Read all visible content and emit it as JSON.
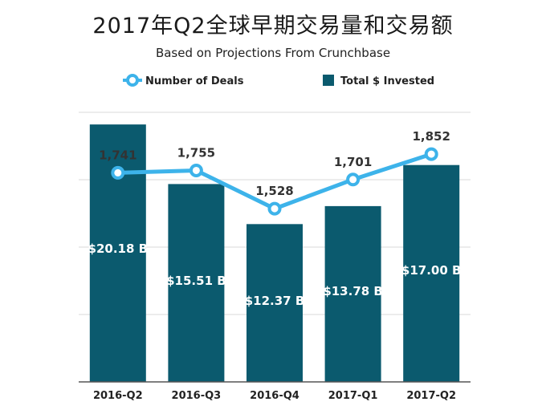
{
  "title": "2017年Q2全球早期交易量和交易额",
  "subtitle": "Based on Projections From Crunchbase",
  "legend": {
    "deals_label": "Number of Deals",
    "invested_label": "Total $ Invested"
  },
  "colors": {
    "bar": "#0b5a6e",
    "line": "#3db3ea",
    "grid": "#d9d9d9",
    "axis": "#555555"
  },
  "chart_data": {
    "type": "bar",
    "title": "2017年Q2全球早期交易量和交易额",
    "subtitle": "Based on Projections From Crunchbase",
    "categories": [
      "2016-Q2",
      "2016-Q3",
      "2016-Q4",
      "2017-Q1",
      "2017-Q2"
    ],
    "series": [
      {
        "name": "Total $ Invested",
        "type": "bar",
        "values": [
          20.18,
          15.51,
          12.37,
          13.78,
          17.0
        ],
        "labels": [
          "$20.18 B",
          "$15.51 B",
          "$12.37 B",
          "$13.78 B",
          "$17.00 B"
        ]
      },
      {
        "name": "Number of Deals",
        "type": "line",
        "values": [
          1741,
          1755,
          1528,
          1701,
          1852
        ],
        "labels": [
          "1,741",
          "1,755",
          "1,528",
          "1,701",
          "1,852"
        ]
      }
    ],
    "bar_ylim": [
      0,
      20
    ],
    "line_ylim": [
      500,
      2100
    ],
    "grid": true,
    "legend_position": "top"
  }
}
